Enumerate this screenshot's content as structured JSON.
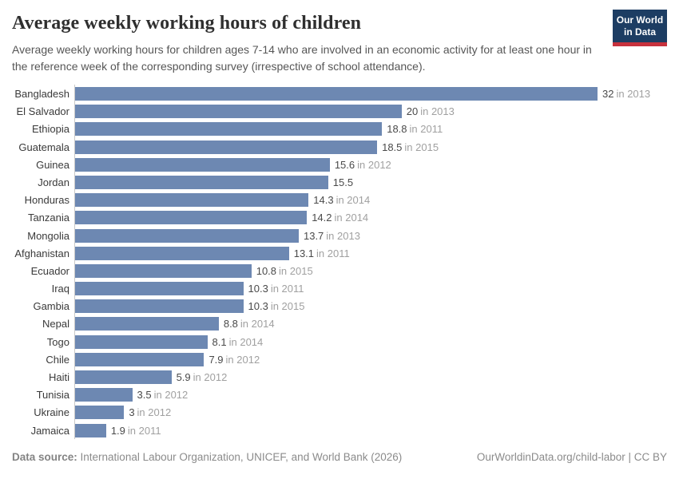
{
  "header": {
    "title": "Average weekly working hours of children",
    "subtitle": "Average weekly working hours for children ages 7-14 who are involved in an economic activity for at least one hour in the reference week of the corresponding survey (irrespective of school attendance).",
    "logo": {
      "line1": "Our World",
      "line2": "in Data"
    }
  },
  "chart_data": {
    "type": "bar",
    "orientation": "horizontal",
    "title": "Average weekly working hours of children",
    "xlabel": "",
    "ylabel": "",
    "xlim": [
      0,
      32
    ],
    "grid": false,
    "legend": false,
    "categories": [
      "Bangladesh",
      "El Salvador",
      "Ethiopia",
      "Guatemala",
      "Guinea",
      "Jordan",
      "Honduras",
      "Tanzania",
      "Mongolia",
      "Afghanistan",
      "Ecuador",
      "Iraq",
      "Gambia",
      "Nepal",
      "Togo",
      "Chile",
      "Haiti",
      "Tunisia",
      "Ukraine",
      "Jamaica"
    ],
    "values": [
      32,
      20,
      18.8,
      18.5,
      15.6,
      15.5,
      14.3,
      14.2,
      13.7,
      13.1,
      10.8,
      10.3,
      10.3,
      8.8,
      8.1,
      7.9,
      5.9,
      3.5,
      3,
      1.9
    ],
    "value_labels": [
      "32",
      "20",
      "18.8",
      "18.5",
      "15.6",
      "15.5",
      "14.3",
      "14.2",
      "13.7",
      "13.1",
      "10.8",
      "10.3",
      "10.3",
      "8.8",
      "8.1",
      "7.9",
      "5.9",
      "3.5",
      "3",
      "1.9"
    ],
    "year_labels": [
      "in 2013",
      "in 2013",
      "in 2011",
      "in 2015",
      "in 2012",
      "",
      "in 2014",
      "in 2014",
      "in 2013",
      "in 2011",
      "in 2015",
      "in 2011",
      "in 2015",
      "in 2014",
      "in 2014",
      "in 2012",
      "in 2012",
      "in 2012",
      "in 2012",
      "in 2011"
    ],
    "bar_color": "#6d88b2"
  },
  "colors": {
    "bar": "#6d88b2",
    "logo_background": "#1d3d63",
    "logo_stripe": "#c7313d",
    "axis_line": "#c9c9c9"
  },
  "footer": {
    "source_label": "Data source:",
    "source_text": " International Labour Organization, UNICEF, and World Bank (2026)",
    "attribution": "OurWorldinData.org/child-labor | CC BY"
  }
}
